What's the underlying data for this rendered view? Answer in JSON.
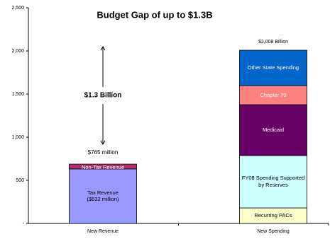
{
  "chart_data": {
    "type": "stacked_bar",
    "title": "Budget Gap of up to $1.3B",
    "categories": [
      "New Revenue",
      "New Spending"
    ],
    "series": [
      {
        "name": "Tax Revenue",
        "color": "#9999ff",
        "values": [
          632,
          null
        ],
        "value_labels": [
          "($632 million)",
          null
        ]
      },
      {
        "name": "Non-Tax Revenue",
        "color": "#b0306a",
        "values": [
          56,
          null
        ]
      },
      {
        "name": "Recurring PACs",
        "color": "#ffffcc",
        "values": [
          null,
          180
        ]
      },
      {
        "name": "FY08 Spending Supported by Reserves",
        "color": "#ccffff",
        "values": [
          null,
          607
        ]
      },
      {
        "name": "Medicaid",
        "color": "#660066",
        "values": [
          null,
          590
        ]
      },
      {
        "name": "Chapter 70",
        "color": "#ff8080",
        "values": [
          null,
          221
        ]
      },
      {
        "name": "Other State Spending",
        "color": "#0066cc",
        "values": [
          null,
          410
        ]
      }
    ],
    "annotations": [
      "$765 million",
      "$2,008 Billion",
      "$1.3 Billion"
    ],
    "ylim": [
      0,
      2500
    ],
    "yticks": [
      {
        "value": 0,
        "label": "-"
      },
      500,
      {
        "value": 1000,
        "label": "1,000"
      },
      {
        "value": 1500,
        "label": "1,500"
      },
      {
        "value": 2000,
        "label": "2,000"
      },
      {
        "value": 2500,
        "label": "2,500"
      }
    ],
    "grid": false
  }
}
